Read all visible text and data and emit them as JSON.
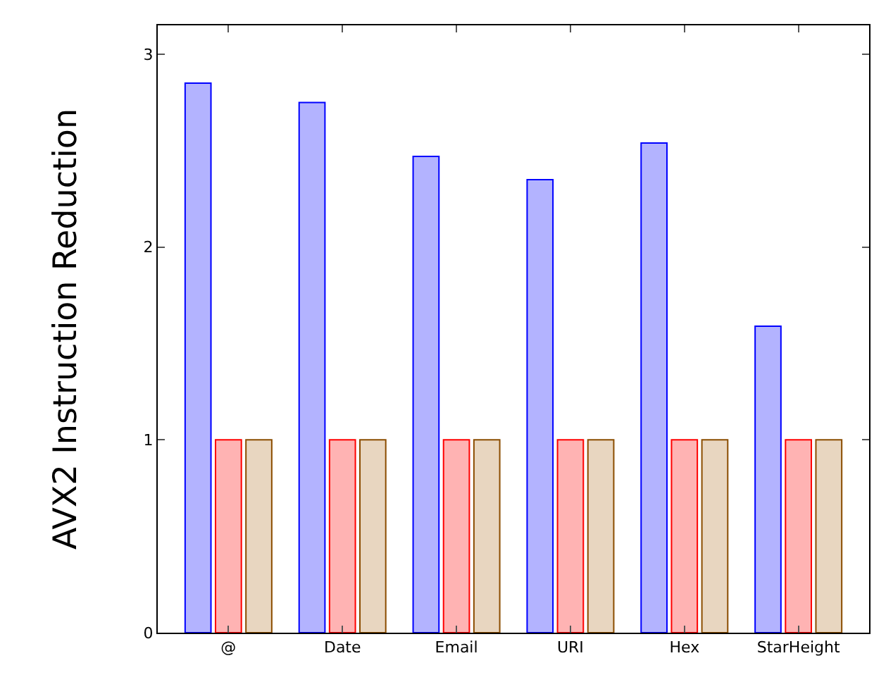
{
  "chart_data": {
    "type": "bar",
    "ylabel": "AVX2 Instruction Reduction",
    "categories": [
      "@",
      "Date",
      "Email",
      "URI",
      "Hex",
      "StarHeight"
    ],
    "series": [
      {
        "color": "#b3b3ff",
        "values": [
          2.85,
          2.75,
          2.47,
          2.35,
          2.54,
          1.59
        ]
      },
      {
        "color": "#ffb3b3",
        "values": [
          1.0,
          1.0,
          1.0,
          1.0,
          1.0,
          1.0
        ]
      },
      {
        "color": "#e8d6c0",
        "values": [
          1.0,
          1.0,
          1.0,
          1.0,
          1.0,
          1.0
        ]
      }
    ],
    "ylim": [
      0,
      3.15
    ],
    "yticks": [
      0,
      1,
      2,
      3
    ],
    "grid": false
  }
}
